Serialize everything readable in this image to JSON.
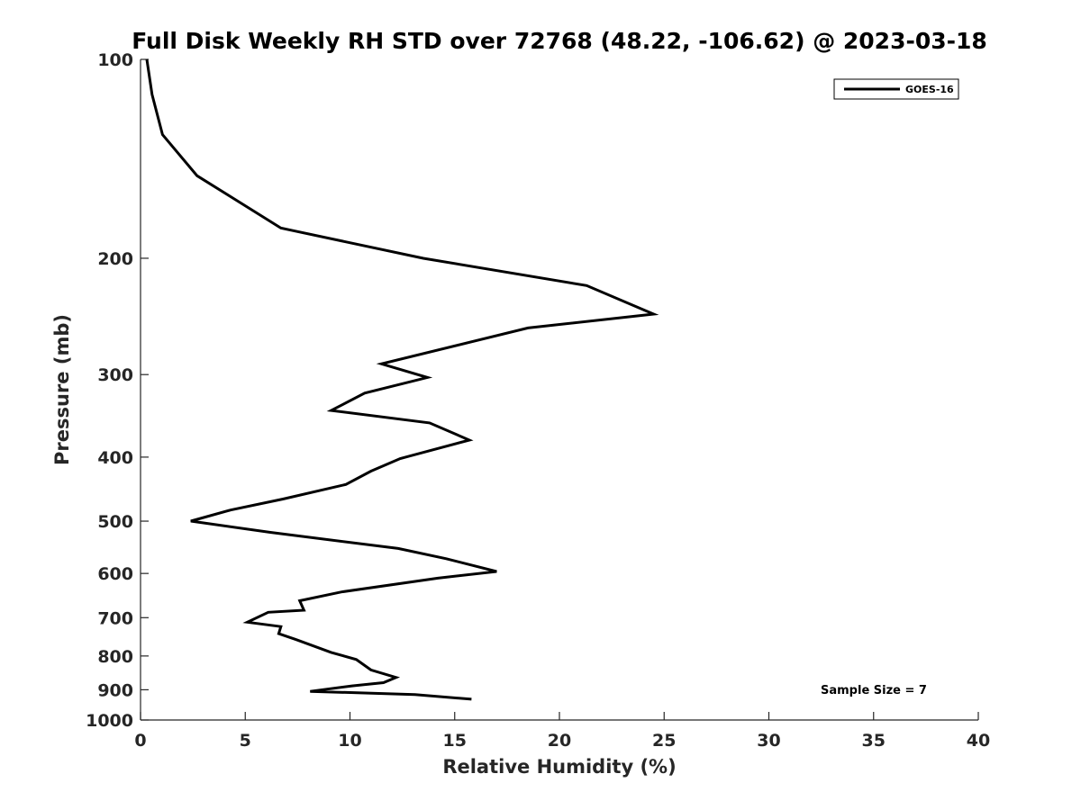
{
  "chart_data": {
    "type": "line",
    "title": "Full Disk Weekly RH STD over 72768 (48.22, -106.62) @ 2023-03-18",
    "xlabel": "Relative Humidity (%)",
    "ylabel": "Pressure (mb)",
    "xlim": [
      0,
      40
    ],
    "ylim": [
      100,
      1000
    ],
    "y_scale": "log",
    "y_reversed": true,
    "x_ticks": [
      0,
      5,
      10,
      15,
      20,
      25,
      30,
      35,
      40
    ],
    "x_tick_labels": [
      "0",
      "5",
      "10",
      "15",
      "20",
      "25",
      "30",
      "35",
      "40"
    ],
    "y_ticks": [
      100,
      200,
      300,
      400,
      500,
      600,
      700,
      800,
      900,
      1000
    ],
    "y_tick_labels": [
      "100",
      "200",
      "300",
      "400",
      "500",
      "600",
      "700",
      "800",
      "900",
      "1000"
    ],
    "grid": false,
    "legend_position": "top-right",
    "line_color": "#000000",
    "series": [
      {
        "name": "GOES-16",
        "x": [
          0.3,
          0.55,
          1.05,
          2.7,
          6.7,
          13.5,
          21.3,
          24.5,
          18.5,
          11.5,
          13.7,
          10.7,
          9.1,
          13.8,
          15.7,
          12.4,
          11.0,
          9.8,
          6.8,
          4.3,
          2.4,
          6.2,
          12.3,
          14.6,
          17.0,
          14.2,
          9.6,
          7.6,
          7.8,
          6.1,
          5.1,
          6.7,
          6.6,
          7.4,
          9.1,
          10.3,
          11.0,
          12.2,
          11.6,
          10.1,
          8.1,
          13.1,
          15.8
        ],
        "y": [
          100,
          113,
          130,
          150,
          180,
          200,
          220,
          243,
          255,
          289,
          303,
          320,
          340,
          355,
          377,
          402,
          420,
          440,
          463,
          481,
          500,
          520,
          550,
          570,
          596,
          610,
          640,
          660,
          682,
          687,
          711,
          722,
          740,
          755,
          790,
          810,
          840,
          862,
          878,
          888,
          905,
          915,
          930
        ]
      }
    ],
    "annotation": "Sample Size = 7"
  }
}
